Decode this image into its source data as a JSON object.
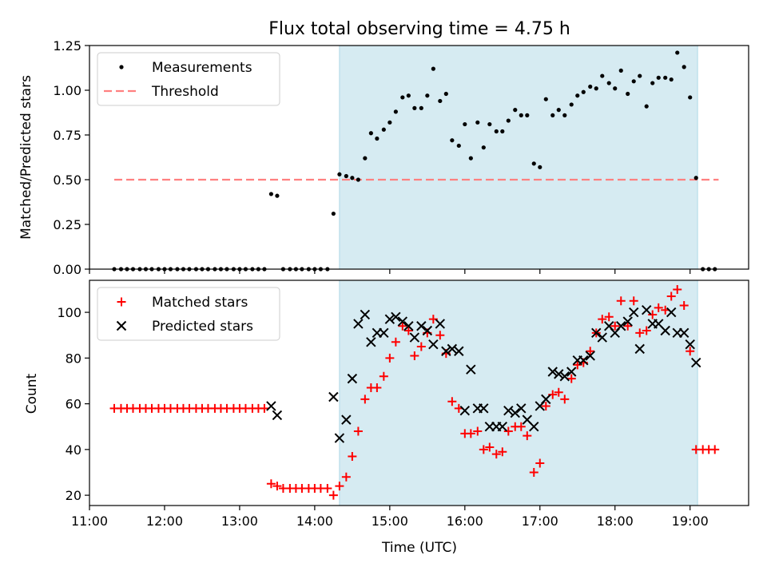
{
  "figure": {
    "title": "Flux total observing time = 4.75 h"
  },
  "chart_data": [
    {
      "type": "scatter",
      "ylabel": "Matched/Predicted stars",
      "ylim": [
        0.0,
        1.25
      ],
      "yticks": [
        0.0,
        0.25,
        0.5,
        0.75,
        1.0,
        1.25
      ],
      "ytick_labels": [
        "0.00",
        "0.25",
        "0.50",
        "0.75",
        "1.00",
        "1.25"
      ],
      "xlim_hours": [
        11.0,
        19.78
      ],
      "shaded_region_hours": [
        14.33,
        19.1
      ],
      "legend": {
        "placement": "top-left",
        "entries": [
          {
            "label": "Measurements",
            "marker": "dot",
            "color": "#000000"
          },
          {
            "label": "Threshold",
            "marker": "dashed-line",
            "color": "#ff8080"
          }
        ]
      },
      "threshold": {
        "value": 0.5,
        "x_range_hours": [
          11.33,
          19.38
        ],
        "color": "#ff8080"
      },
      "series": [
        {
          "name": "Measurements",
          "color": "#000000",
          "points": [
            [
              11.33,
              0
            ],
            [
              11.42,
              0
            ],
            [
              11.5,
              0
            ],
            [
              11.58,
              0
            ],
            [
              11.67,
              0
            ],
            [
              11.75,
              0
            ],
            [
              11.83,
              0
            ],
            [
              11.92,
              0
            ],
            [
              12.0,
              0
            ],
            [
              12.08,
              0
            ],
            [
              12.17,
              0
            ],
            [
              12.25,
              0
            ],
            [
              12.33,
              0
            ],
            [
              12.42,
              0
            ],
            [
              12.5,
              0
            ],
            [
              12.58,
              0
            ],
            [
              12.67,
              0
            ],
            [
              12.75,
              0
            ],
            [
              12.83,
              0
            ],
            [
              12.92,
              0
            ],
            [
              13.0,
              0
            ],
            [
              13.08,
              0
            ],
            [
              13.17,
              0
            ],
            [
              13.25,
              0
            ],
            [
              13.33,
              0
            ],
            [
              13.42,
              0.42
            ],
            [
              13.5,
              0.41
            ],
            [
              13.58,
              0
            ],
            [
              13.67,
              0
            ],
            [
              13.75,
              0
            ],
            [
              13.83,
              0
            ],
            [
              13.92,
              0
            ],
            [
              14.0,
              0
            ],
            [
              14.08,
              0
            ],
            [
              14.17,
              0
            ],
            [
              14.25,
              0.31
            ],
            [
              14.33,
              0.53
            ],
            [
              14.42,
              0.52
            ],
            [
              14.5,
              0.51
            ],
            [
              14.58,
              0.5
            ],
            [
              14.67,
              0.62
            ],
            [
              14.75,
              0.76
            ],
            [
              14.83,
              0.73
            ],
            [
              14.92,
              0.78
            ],
            [
              15.0,
              0.82
            ],
            [
              15.08,
              0.88
            ],
            [
              15.17,
              0.96
            ],
            [
              15.25,
              0.97
            ],
            [
              15.33,
              0.9
            ],
            [
              15.42,
              0.9
            ],
            [
              15.5,
              0.97
            ],
            [
              15.58,
              1.12
            ],
            [
              15.67,
              0.94
            ],
            [
              15.75,
              0.98
            ],
            [
              15.83,
              0.72
            ],
            [
              15.92,
              0.69
            ],
            [
              16.0,
              0.81
            ],
            [
              16.08,
              0.62
            ],
            [
              16.17,
              0.82
            ],
            [
              16.25,
              0.68
            ],
            [
              16.33,
              0.81
            ],
            [
              16.42,
              0.77
            ],
            [
              16.5,
              0.77
            ],
            [
              16.58,
              0.83
            ],
            [
              16.67,
              0.89
            ],
            [
              16.75,
              0.86
            ],
            [
              16.83,
              0.86
            ],
            [
              16.92,
              0.59
            ],
            [
              17.0,
              0.57
            ],
            [
              17.08,
              0.95
            ],
            [
              17.17,
              0.86
            ],
            [
              17.25,
              0.89
            ],
            [
              17.33,
              0.86
            ],
            [
              17.42,
              0.92
            ],
            [
              17.5,
              0.97
            ],
            [
              17.58,
              0.99
            ],
            [
              17.67,
              1.02
            ],
            [
              17.75,
              1.01
            ],
            [
              17.83,
              1.08
            ],
            [
              17.92,
              1.04
            ],
            [
              18.0,
              1.01
            ],
            [
              18.08,
              1.11
            ],
            [
              18.17,
              0.98
            ],
            [
              18.25,
              1.05
            ],
            [
              18.33,
              1.08
            ],
            [
              18.42,
              0.91
            ],
            [
              18.5,
              1.04
            ],
            [
              18.58,
              1.07
            ],
            [
              18.67,
              1.07
            ],
            [
              18.75,
              1.06
            ],
            [
              18.83,
              1.21
            ],
            [
              18.92,
              1.13
            ],
            [
              19.0,
              0.96
            ],
            [
              19.08,
              0.51
            ],
            [
              19.17,
              0
            ],
            [
              19.25,
              0
            ],
            [
              19.33,
              0
            ]
          ]
        }
      ]
    },
    {
      "type": "scatter",
      "xlabel": "Time (UTC)",
      "ylabel": "Count",
      "ylim": [
        15.5,
        114
      ],
      "yticks": [
        20,
        40,
        60,
        80,
        100
      ],
      "ytick_labels": [
        "20",
        "40",
        "60",
        "80",
        "100"
      ],
      "xlim_hours": [
        11.0,
        19.78
      ],
      "xticks_hours": [
        11,
        12,
        13,
        14,
        15,
        16,
        17,
        18,
        19
      ],
      "xtick_labels": [
        "11:00",
        "12:00",
        "13:00",
        "14:00",
        "15:00",
        "16:00",
        "17:00",
        "18:00",
        "19:00"
      ],
      "shaded_region_hours": [
        14.33,
        19.1
      ],
      "legend": {
        "placement": "top-left",
        "entries": [
          {
            "label": "Matched stars",
            "marker": "plus",
            "color": "#ff0000"
          },
          {
            "label": "Predicted stars",
            "marker": "x",
            "color": "#000000"
          }
        ]
      },
      "series": [
        {
          "name": "Matched stars",
          "marker": "plus",
          "color": "#ff0000",
          "points": [
            [
              11.33,
              58
            ],
            [
              11.42,
              58
            ],
            [
              11.5,
              58
            ],
            [
              11.58,
              58
            ],
            [
              11.67,
              58
            ],
            [
              11.75,
              58
            ],
            [
              11.83,
              58
            ],
            [
              11.92,
              58
            ],
            [
              12.0,
              58
            ],
            [
              12.08,
              58
            ],
            [
              12.17,
              58
            ],
            [
              12.25,
              58
            ],
            [
              12.33,
              58
            ],
            [
              12.42,
              58
            ],
            [
              12.5,
              58
            ],
            [
              12.58,
              58
            ],
            [
              12.67,
              58
            ],
            [
              12.75,
              58
            ],
            [
              12.83,
              58
            ],
            [
              12.92,
              58
            ],
            [
              13.0,
              58
            ],
            [
              13.08,
              58
            ],
            [
              13.17,
              58
            ],
            [
              13.25,
              58
            ],
            [
              13.33,
              58
            ],
            [
              13.42,
              25
            ],
            [
              13.5,
              24
            ],
            [
              13.58,
              23
            ],
            [
              13.67,
              23
            ],
            [
              13.75,
              23
            ],
            [
              13.83,
              23
            ],
            [
              13.92,
              23
            ],
            [
              14.0,
              23
            ],
            [
              14.08,
              23
            ],
            [
              14.17,
              23
            ],
            [
              14.25,
              20
            ],
            [
              14.33,
              24
            ],
            [
              14.42,
              28
            ],
            [
              14.5,
              37
            ],
            [
              14.58,
              48
            ],
            [
              14.67,
              62
            ],
            [
              14.75,
              67
            ],
            [
              14.83,
              67
            ],
            [
              14.92,
              72
            ],
            [
              15.0,
              80
            ],
            [
              15.08,
              87
            ],
            [
              15.17,
              94
            ],
            [
              15.25,
              92
            ],
            [
              15.33,
              81
            ],
            [
              15.42,
              85
            ],
            [
              15.5,
              91
            ],
            [
              15.58,
              97
            ],
            [
              15.67,
              90
            ],
            [
              15.75,
              82
            ],
            [
              15.83,
              61
            ],
            [
              15.92,
              58
            ],
            [
              16.0,
              47
            ],
            [
              16.08,
              47
            ],
            [
              16.17,
              48
            ],
            [
              16.25,
              40
            ],
            [
              16.33,
              41
            ],
            [
              16.42,
              38
            ],
            [
              16.5,
              39
            ],
            [
              16.58,
              48
            ],
            [
              16.67,
              50
            ],
            [
              16.75,
              50
            ],
            [
              16.83,
              46
            ],
            [
              16.92,
              30
            ],
            [
              17.0,
              34
            ],
            [
              17.08,
              59
            ],
            [
              17.17,
              64
            ],
            [
              17.25,
              65
            ],
            [
              17.33,
              62
            ],
            [
              17.42,
              71
            ],
            [
              17.5,
              77
            ],
            [
              17.58,
              78
            ],
            [
              17.67,
              83
            ],
            [
              17.75,
              91
            ],
            [
              17.83,
              97
            ],
            [
              17.92,
              98
            ],
            [
              18.0,
              94
            ],
            [
              18.08,
              105
            ],
            [
              18.17,
              94
            ],
            [
              18.25,
              105
            ],
            [
              18.33,
              91
            ],
            [
              18.42,
              92
            ],
            [
              18.5,
              99
            ],
            [
              18.58,
              102
            ],
            [
              18.67,
              101
            ],
            [
              18.75,
              107
            ],
            [
              18.83,
              110
            ],
            [
              18.92,
              103
            ],
            [
              19.0,
              83
            ],
            [
              19.08,
              40
            ],
            [
              19.17,
              40
            ],
            [
              19.25,
              40
            ],
            [
              19.33,
              40
            ]
          ]
        },
        {
          "name": "Predicted stars",
          "marker": "x",
          "color": "#000000",
          "points": [
            [
              13.42,
              59
            ],
            [
              13.5,
              55
            ],
            [
              14.25,
              63
            ],
            [
              14.33,
              45
            ],
            [
              14.42,
              53
            ],
            [
              14.5,
              71
            ],
            [
              14.58,
              95
            ],
            [
              14.67,
              99
            ],
            [
              14.75,
              87
            ],
            [
              14.83,
              91
            ],
            [
              14.92,
              91
            ],
            [
              15.0,
              97
            ],
            [
              15.08,
              98
            ],
            [
              15.17,
              96
            ],
            [
              15.25,
              94
            ],
            [
              15.33,
              89
            ],
            [
              15.42,
              94
            ],
            [
              15.5,
              92
            ],
            [
              15.58,
              86
            ],
            [
              15.67,
              95
            ],
            [
              15.75,
              83
            ],
            [
              15.83,
              84
            ],
            [
              15.92,
              83
            ],
            [
              16.0,
              57
            ],
            [
              16.08,
              75
            ],
            [
              16.17,
              58
            ],
            [
              16.25,
              58
            ],
            [
              16.33,
              50
            ],
            [
              16.42,
              50
            ],
            [
              16.5,
              50
            ],
            [
              16.58,
              57
            ],
            [
              16.67,
              56
            ],
            [
              16.75,
              58
            ],
            [
              16.83,
              53
            ],
            [
              16.92,
              50
            ],
            [
              17.0,
              59
            ],
            [
              17.08,
              62
            ],
            [
              17.17,
              74
            ],
            [
              17.25,
              73
            ],
            [
              17.33,
              72
            ],
            [
              17.42,
              74
            ],
            [
              17.5,
              79
            ],
            [
              17.58,
              79
            ],
            [
              17.67,
              81
            ],
            [
              17.75,
              91
            ],
            [
              17.83,
              89
            ],
            [
              17.92,
              94
            ],
            [
              18.0,
              91
            ],
            [
              18.08,
              94
            ],
            [
              18.17,
              96
            ],
            [
              18.25,
              100
            ],
            [
              18.33,
              84
            ],
            [
              18.42,
              101
            ],
            [
              18.5,
              95
            ],
            [
              18.58,
              95
            ],
            [
              18.67,
              92
            ],
            [
              18.75,
              100
            ],
            [
              18.83,
              91
            ],
            [
              18.92,
              91
            ],
            [
              19.0,
              86
            ],
            [
              19.08,
              78
            ]
          ]
        }
      ]
    }
  ]
}
